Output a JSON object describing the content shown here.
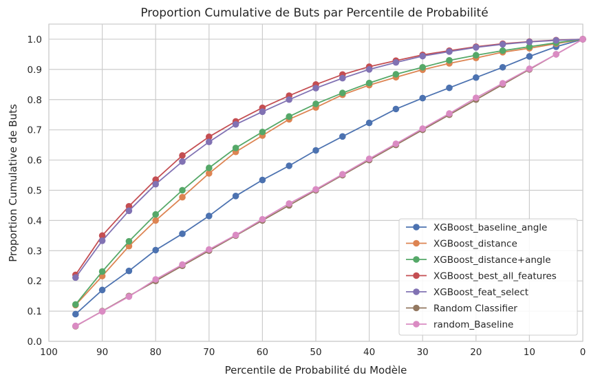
{
  "chart_data": {
    "type": "line",
    "title": "Proportion Cumulative de Buts par Percentile de Probabilité",
    "xlabel": "Percentile de Probabilité du Modèle",
    "ylabel": "Proportion Cumulative de Buts",
    "xlim": [
      100,
      0
    ],
    "ylim": [
      0,
      1.05
    ],
    "x_ticks": [
      100,
      90,
      80,
      70,
      60,
      50,
      40,
      30,
      20,
      10,
      0
    ],
    "y_ticks": [
      0.0,
      0.1,
      0.2,
      0.3,
      0.4,
      0.5,
      0.6,
      0.7,
      0.8,
      0.9,
      1.0
    ],
    "grid": true,
    "legend_position": "lower-right",
    "x": [
      95,
      90,
      85,
      80,
      75,
      70,
      65,
      60,
      55,
      50,
      45,
      40,
      35,
      30,
      25,
      20,
      15,
      10,
      5,
      0
    ],
    "series": [
      {
        "name": "XGBoost_baseline_angle",
        "color": "#4c72b0",
        "values": [
          0.09,
          0.17,
          0.233,
          0.302,
          0.356,
          0.415,
          0.481,
          0.534,
          0.581,
          0.632,
          0.678,
          0.723,
          0.769,
          0.805,
          0.839,
          0.873,
          0.907,
          0.943,
          0.975,
          1.0
        ]
      },
      {
        "name": "XGBoost_distance",
        "color": "#dd8452",
        "values": [
          0.12,
          0.216,
          0.315,
          0.4,
          0.477,
          0.556,
          0.627,
          0.681,
          0.735,
          0.774,
          0.816,
          0.848,
          0.874,
          0.899,
          0.92,
          0.938,
          0.957,
          0.97,
          0.985,
          1.0
        ]
      },
      {
        "name": "XGBoost_distance+angle",
        "color": "#55a868",
        "values": [
          0.122,
          0.231,
          0.331,
          0.42,
          0.5,
          0.574,
          0.64,
          0.693,
          0.744,
          0.786,
          0.822,
          0.855,
          0.884,
          0.907,
          0.93,
          0.947,
          0.962,
          0.975,
          0.988,
          1.0
        ]
      },
      {
        "name": "XGBoost_best_all_features",
        "color": "#c44e52",
        "values": [
          0.22,
          0.35,
          0.447,
          0.535,
          0.615,
          0.677,
          0.728,
          0.773,
          0.813,
          0.85,
          0.883,
          0.909,
          0.929,
          0.948,
          0.962,
          0.975,
          0.985,
          0.992,
          0.997,
          1.0
        ]
      },
      {
        "name": "XGBoost_feat_select",
        "color": "#8172b3",
        "values": [
          0.211,
          0.333,
          0.432,
          0.52,
          0.595,
          0.66,
          0.718,
          0.76,
          0.8,
          0.838,
          0.871,
          0.9,
          0.923,
          0.944,
          0.959,
          0.973,
          0.983,
          0.991,
          0.996,
          1.0
        ]
      },
      {
        "name": "Random Classifier",
        "color": "#937860",
        "values": [
          0.05,
          0.1,
          0.15,
          0.2,
          0.25,
          0.3,
          0.35,
          0.4,
          0.45,
          0.5,
          0.55,
          0.6,
          0.65,
          0.7,
          0.75,
          0.8,
          0.85,
          0.9,
          0.95,
          1.0
        ]
      },
      {
        "name": "random_Baseline",
        "color": "#da8bc3",
        "values": [
          0.051,
          0.099,
          0.148,
          0.205,
          0.254,
          0.304,
          0.352,
          0.404,
          0.456,
          0.503,
          0.553,
          0.604,
          0.654,
          0.704,
          0.754,
          0.806,
          0.854,
          0.902,
          0.95,
          1.0
        ]
      }
    ]
  }
}
